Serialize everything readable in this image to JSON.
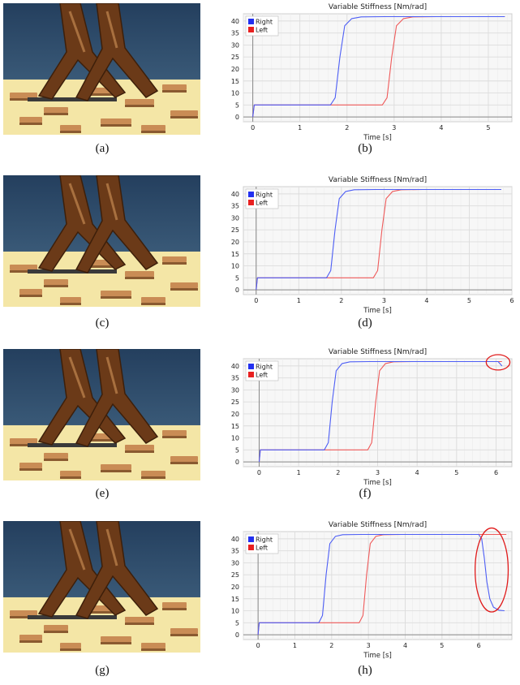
{
  "captions": [
    "(a)",
    "(b)",
    "(c)",
    "(d)",
    "(e)",
    "(f)",
    "(g)",
    "(h)"
  ],
  "photos": [
    {
      "caption": "(a)",
      "subject": "robot-legs-on-terrain"
    },
    {
      "caption": "(c)",
      "subject": "robot-legs-on-terrain"
    },
    {
      "caption": "(e)",
      "subject": "robot-legs-on-terrain"
    },
    {
      "caption": "(g)",
      "subject": "robot-legs-on-terrain"
    }
  ],
  "colors": {
    "sky": "#2e4d6e",
    "ground": "#f4e6a6",
    "robot": "#6b3a18",
    "right_series": "#4d5ef5",
    "left_series": "#ef5a5a",
    "plot_bg": "#f7f7f7",
    "grid": "#dcdcdc",
    "highlight": "#e01b1b"
  },
  "chart_data": [
    {
      "type": "line",
      "caption": "(b)",
      "title": "Variable Stiffness [Nm/rad]",
      "xlabel": "Time [s]",
      "ylabel": "",
      "xlim": [
        -0.2,
        5.5
      ],
      "ylim": [
        -2,
        43
      ],
      "xticks": [
        0,
        1,
        2,
        3,
        4,
        5
      ],
      "yticks": [
        0,
        5,
        10,
        15,
        20,
        25,
        30,
        35,
        40
      ],
      "legend": "top-left",
      "grid": true,
      "series": [
        {
          "name": "Right",
          "x": [
            0,
            0.03,
            1.65,
            1.75,
            1.85,
            1.95,
            2.1,
            2.3,
            2.8,
            5.35
          ],
          "values": [
            0,
            5,
            5,
            8,
            25,
            38,
            41,
            41.7,
            41.8,
            41.8
          ]
        },
        {
          "name": "Left",
          "x": [
            0,
            0.03,
            2.75,
            2.85,
            2.95,
            3.05,
            3.2,
            3.4,
            3.9,
            5.35
          ],
          "values": [
            0,
            5,
            5,
            8,
            25,
            38,
            41,
            41.7,
            41.8,
            41.8
          ]
        }
      ]
    },
    {
      "type": "line",
      "caption": "(d)",
      "title": "Variable Stiffness [Nm/rad]",
      "xlabel": "Time [s]",
      "ylabel": "",
      "xlim": [
        -0.3,
        6
      ],
      "ylim": [
        -2,
        43
      ],
      "xticks": [
        0,
        1,
        2,
        3,
        4,
        5,
        6
      ],
      "yticks": [
        0,
        5,
        10,
        15,
        20,
        25,
        30,
        35,
        40
      ],
      "legend": "top-left",
      "grid": true,
      "series": [
        {
          "name": "Right",
          "x": [
            0,
            0.03,
            1.65,
            1.75,
            1.85,
            1.95,
            2.1,
            2.3,
            2.8,
            5.75
          ],
          "values": [
            0,
            5,
            5,
            8,
            25,
            38,
            41,
            41.7,
            41.8,
            41.8
          ]
        },
        {
          "name": "Left",
          "x": [
            0,
            0.03,
            2.75,
            2.85,
            2.95,
            3.05,
            3.2,
            3.4,
            3.9,
            5.75
          ],
          "values": [
            0,
            5,
            5,
            8,
            25,
            38,
            41,
            41.7,
            41.8,
            41.8
          ]
        }
      ]
    },
    {
      "type": "line",
      "caption": "(f)",
      "title": "Variable Stiffness [Nm/rad]",
      "xlabel": "Time [s]",
      "ylabel": "",
      "xlim": [
        -0.4,
        6.4
      ],
      "ylim": [
        -2,
        43
      ],
      "xticks": [
        0,
        1,
        2,
        3,
        4,
        5,
        6
      ],
      "yticks": [
        0,
        5,
        10,
        15,
        20,
        25,
        30,
        35,
        40
      ],
      "legend": "top-left",
      "grid": true,
      "series": [
        {
          "name": "Right",
          "x": [
            0,
            0.03,
            1.65,
            1.75,
            1.85,
            1.95,
            2.1,
            2.3,
            2.8,
            6.05,
            6.15
          ],
          "values": [
            0,
            5,
            5,
            8,
            25,
            38,
            41,
            41.7,
            41.8,
            41.8,
            40
          ]
        },
        {
          "name": "Left",
          "x": [
            0,
            0.03,
            2.75,
            2.85,
            2.95,
            3.05,
            3.2,
            3.4,
            3.9,
            6.15
          ],
          "values": [
            0,
            5,
            5,
            8,
            25,
            38,
            41,
            41.7,
            41.8,
            41.8
          ]
        }
      ],
      "highlight": {
        "x": 6.05,
        "y": 41.5,
        "rx": 0.3,
        "ry": 3.2
      }
    },
    {
      "type": "line",
      "caption": "(h)",
      "title": "Variable Stiffness [Nm/rad]",
      "xlabel": "Time [s]",
      "ylabel": "",
      "xlim": [
        -0.4,
        6.9
      ],
      "ylim": [
        -2,
        43
      ],
      "xticks": [
        0,
        1,
        2,
        3,
        4,
        5,
        6
      ],
      "yticks": [
        0,
        5,
        10,
        15,
        20,
        25,
        30,
        35,
        40
      ],
      "legend": "top-left",
      "grid": true,
      "series": [
        {
          "name": "Right",
          "x": [
            0,
            0.03,
            1.65,
            1.75,
            1.85,
            1.95,
            2.1,
            2.3,
            2.8,
            6.0,
            6.08,
            6.15,
            6.22,
            6.3,
            6.4,
            6.55,
            6.7
          ],
          "values": [
            0,
            5,
            5,
            8,
            25,
            38,
            41,
            41.7,
            41.8,
            41.8,
            40,
            32,
            22,
            15,
            11.5,
            10.2,
            10
          ]
        },
        {
          "name": "Left",
          "x": [
            0,
            0.03,
            2.75,
            2.85,
            2.95,
            3.05,
            3.2,
            3.4,
            3.9,
            6.75
          ],
          "values": [
            0,
            5,
            5,
            8,
            25,
            38,
            41,
            41.7,
            41.8,
            41.8
          ]
        }
      ],
      "highlight": {
        "x": 6.35,
        "y": 27,
        "rx": 0.45,
        "ry": 17.5
      }
    }
  ]
}
